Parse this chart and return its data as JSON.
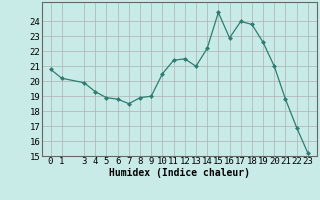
{
  "title": "",
  "xlabel": "Humidex (Indice chaleur)",
  "x_values": [
    0,
    1,
    3,
    4,
    5,
    6,
    7,
    8,
    9,
    10,
    11,
    12,
    13,
    14,
    15,
    16,
    17,
    18,
    19,
    20,
    21,
    22,
    23
  ],
  "y_values": [
    20.8,
    20.2,
    19.9,
    19.3,
    18.9,
    18.8,
    18.5,
    18.9,
    19.0,
    20.5,
    21.4,
    21.5,
    21.0,
    22.2,
    24.6,
    22.9,
    24.0,
    23.8,
    22.6,
    21.0,
    18.8,
    16.9,
    15.2
  ],
  "line_color": "#2e7d6e",
  "marker": "D",
  "marker_size": 2,
  "background_color": "#c8ebe8",
  "grid_color": "#b0b0b0",
  "ylim": [
    15,
    25
  ],
  "yticks": [
    15,
    16,
    17,
    18,
    19,
    20,
    21,
    22,
    23,
    24
  ],
  "xticks": [
    0,
    1,
    3,
    4,
    5,
    6,
    7,
    8,
    9,
    10,
    11,
    12,
    13,
    14,
    15,
    16,
    17,
    18,
    19,
    20,
    21,
    22,
    23
  ],
  "xlabel_fontsize": 7,
  "tick_fontsize": 6.5
}
